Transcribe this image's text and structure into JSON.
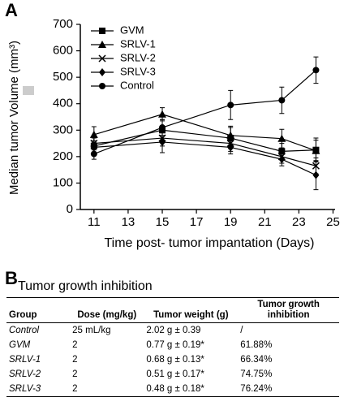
{
  "panel_labels": [
    "A",
    "B"
  ],
  "chart_data": {
    "type": "line",
    "xlabel": "Time post- tumor impantation (Days)",
    "ylabel": "Median tumor Volume (mm³)",
    "x": [
      11,
      15,
      19,
      22,
      24
    ],
    "xlim": [
      10.2,
      25.5
    ],
    "xticks": [
      11,
      13,
      15,
      17,
      19,
      21,
      23,
      25
    ],
    "ylim": [
      0,
      700
    ],
    "yticks": [
      0,
      100,
      200,
      300,
      400,
      500,
      600,
      700
    ],
    "series": [
      {
        "name": "GVM",
        "color": "#000000",
        "marker": "square",
        "values": [
          240,
          300,
          270,
          220,
          225
        ],
        "errors": [
          30,
          40,
          40,
          30,
          45
        ]
      },
      {
        "name": "SRLV-1",
        "color": "#000000",
        "marker": "triangle",
        "values": [
          283,
          360,
          280,
          268,
          222
        ],
        "errors": [
          30,
          25,
          35,
          35,
          40
        ]
      },
      {
        "name": "SRLV-2",
        "color": "#000000",
        "marker": "cross",
        "values": [
          250,
          270,
          250,
          200,
          165
        ],
        "errors": [
          25,
          30,
          30,
          25,
          30
        ]
      },
      {
        "name": "SRLV-3",
        "color": "#000000",
        "marker": "diamond",
        "values": [
          235,
          255,
          235,
          190,
          130
        ],
        "errors": [
          25,
          40,
          25,
          25,
          55
        ]
      },
      {
        "name": "Control",
        "color": "#000000",
        "marker": "circle",
        "values": [
          210,
          310,
          395,
          413,
          527
        ],
        "errors": [
          20,
          30,
          55,
          50,
          50
        ]
      }
    ]
  },
  "table": {
    "title": "Tumor growth inhibition",
    "header": [
      "Group",
      "Dose (mg/kg)",
      "Tumor weight (g)",
      "Tumor growth inhibition"
    ],
    "rows": [
      [
        "Control",
        "25 mL/kg",
        "2.02 g ± 0.39",
        "/"
      ],
      [
        "GVM",
        "2",
        "0.77 g ± 0.19*",
        "61.88%"
      ],
      [
        "SRLV-1",
        "2",
        "0.68 g ± 0.13*",
        "66.34%"
      ],
      [
        "SRLV-2",
        "2",
        "0.51 g ± 0.17*",
        "74.75%"
      ],
      [
        "SRLV-3",
        "2",
        "0.48 g ± 0.18*",
        "76.24%"
      ]
    ]
  }
}
